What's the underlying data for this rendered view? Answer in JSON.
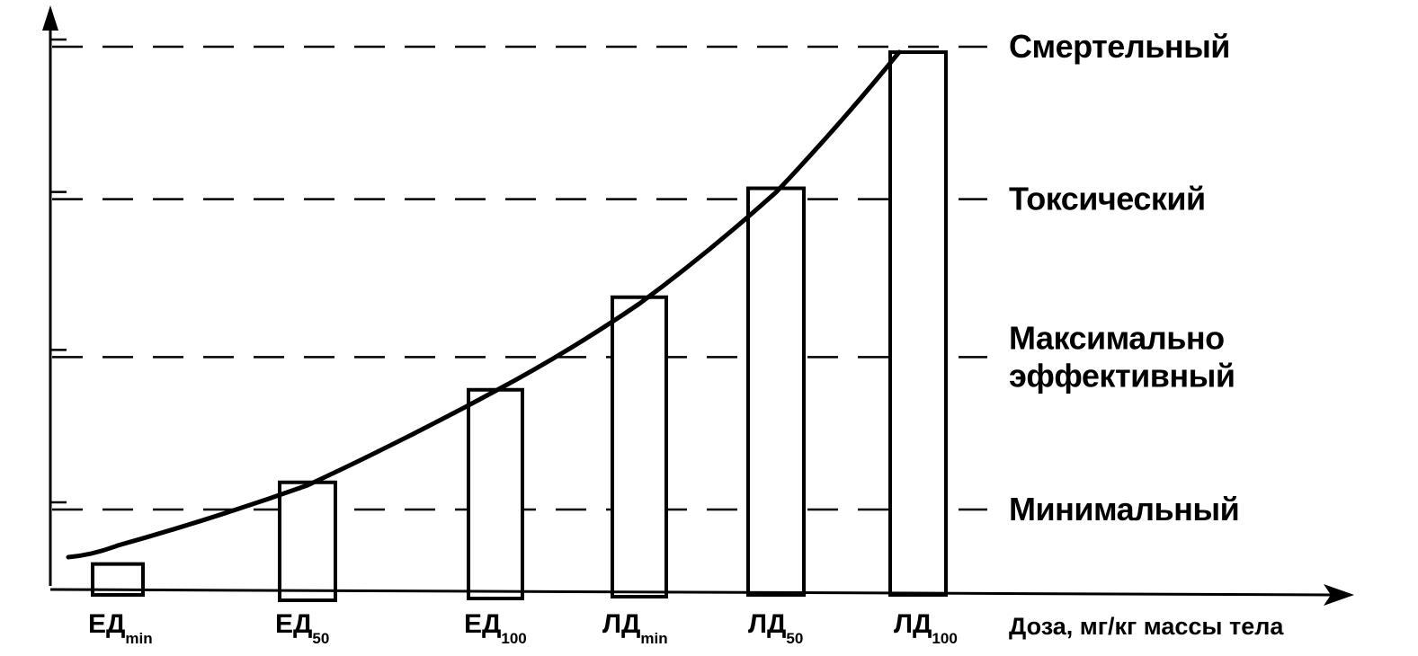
{
  "chart_data": {
    "type": "bar",
    "title": "",
    "xlabel": "Доза, мг/кг массы тела",
    "ylabel": "",
    "categories": [
      {
        "main": "ЕД",
        "sub": "min"
      },
      {
        "main": "ЕД",
        "sub": "50"
      },
      {
        "main": "ЕД",
        "sub": "100"
      },
      {
        "main": "ЛД",
        "sub": "min"
      },
      {
        "main": "ЛД",
        "sub": "50"
      },
      {
        "main": "ЛД",
        "sub": "100"
      }
    ],
    "values": [
      6,
      21,
      38,
      55,
      75,
      100
    ],
    "ylim": [
      0,
      105
    ],
    "levels": [
      {
        "lines": [
          "Минимальный"
        ],
        "value": 16
      },
      {
        "lines": [
          "Максимально",
          "эффективный"
        ],
        "value": 44
      },
      {
        "lines": [
          "Токсический"
        ],
        "value": 73
      },
      {
        "lines": [
          "Смертельный"
        ],
        "value": 101
      }
    ],
    "curve": "exponential through bar tops",
    "grid": false,
    "legend": "none"
  }
}
